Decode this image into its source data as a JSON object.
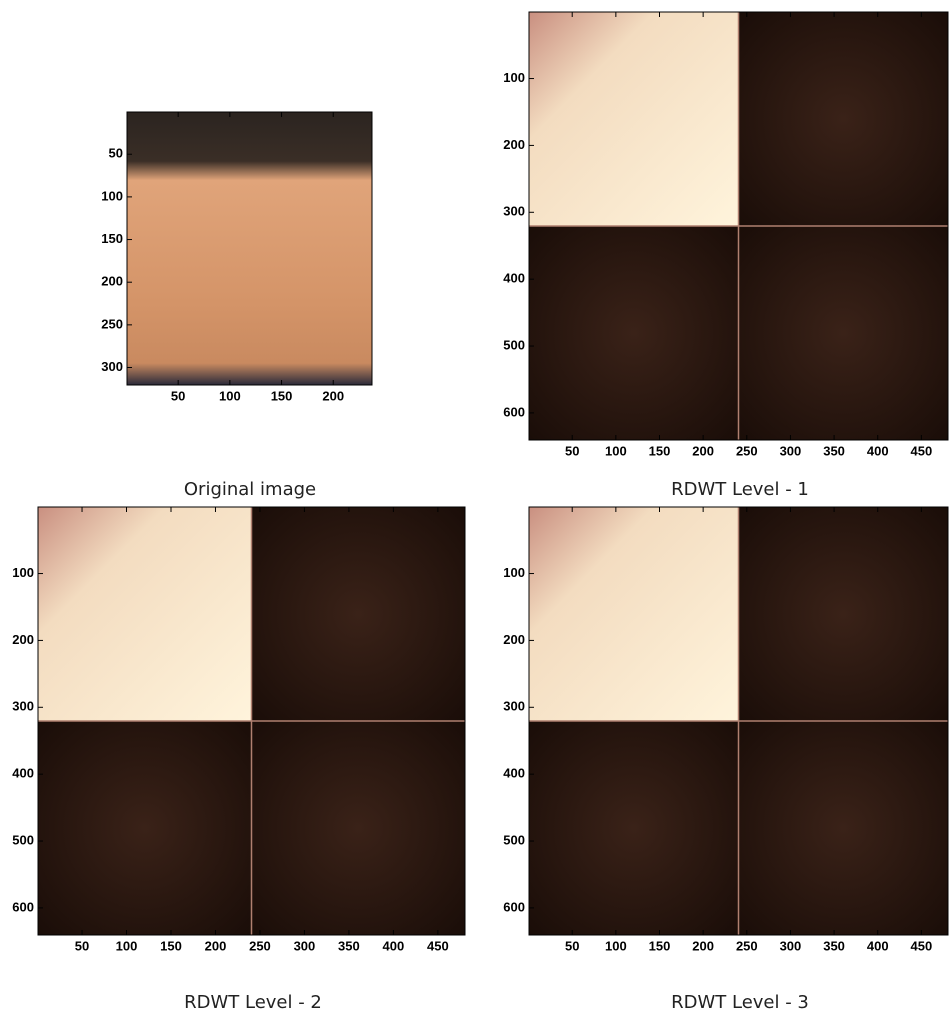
{
  "panels": [
    {
      "caption": "Original image",
      "xlim": [
        0.5,
        237.5
      ],
      "ylim": [
        0.5,
        320.5
      ],
      "xticks": [
        50,
        100,
        150,
        200
      ],
      "yticks": [
        50,
        100,
        150,
        200,
        250,
        300
      ]
    },
    {
      "caption": "RDWT Level - 1",
      "xlim": [
        0.5,
        480.5
      ],
      "ylim": [
        0.5,
        640.5
      ],
      "xticks": [
        50,
        100,
        150,
        200,
        250,
        300,
        350,
        400,
        450
      ],
      "yticks": [
        100,
        200,
        300,
        400,
        500,
        600
      ]
    },
    {
      "caption": "RDWT Level - 2",
      "xlim": [
        0.5,
        480.5
      ],
      "ylim": [
        0.5,
        640.5
      ],
      "xticks": [
        50,
        100,
        150,
        200,
        250,
        300,
        350,
        400,
        450
      ],
      "yticks": [
        100,
        200,
        300,
        400,
        500,
        600
      ]
    },
    {
      "caption": "RDWT Level - 3",
      "xlim": [
        0.5,
        480.5
      ],
      "ylim": [
        0.5,
        640.5
      ],
      "xticks": [
        50,
        100,
        150,
        200,
        250,
        300,
        350,
        400,
        450
      ],
      "yticks": [
        100,
        200,
        300,
        400,
        500,
        600
      ]
    }
  ]
}
